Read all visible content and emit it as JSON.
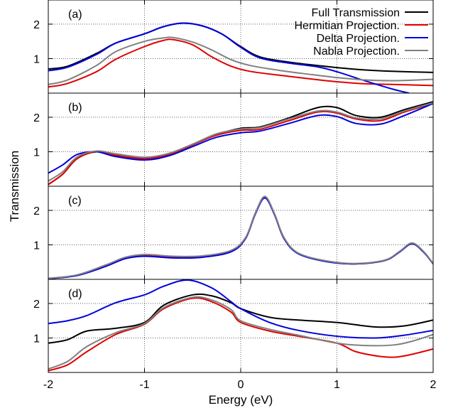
{
  "chart_data": {
    "type": "line",
    "xlabel": "Energy (eV)",
    "ylabel": "Transmission",
    "xlim": [
      -2,
      2
    ],
    "ylim": [
      0,
      2.7
    ],
    "x_ticks": [
      -2,
      -1,
      0,
      1,
      2
    ],
    "y_ticks": [
      1,
      2
    ],
    "grid": true,
    "legend_position": "top-right",
    "legend": [
      {
        "name": "Full Transmission",
        "color": "#000000"
      },
      {
        "name": "Hermitian Projection.",
        "color": "#e00000"
      },
      {
        "name": "Delta Projection.",
        "color": "#0000e0"
      },
      {
        "name": "Nabla Projection.",
        "color": "#808080"
      }
    ],
    "panels": [
      {
        "label": "(a)",
        "series": [
          {
            "name": "Full Transmission",
            "color": "#000000",
            "x": [
              -2,
              -1.8,
              -1.5,
              -1.3,
              -1.0,
              -0.8,
              -0.6,
              -0.4,
              -0.2,
              0,
              0.2,
              0.5,
              0.8,
              1.0,
              1.3,
              1.6,
              2.0
            ],
            "y": [
              0.7,
              0.78,
              1.15,
              1.45,
              1.72,
              1.93,
              2.03,
              1.95,
              1.72,
              1.35,
              1.05,
              0.9,
              0.8,
              0.74,
              0.67,
              0.63,
              0.6
            ]
          },
          {
            "name": "Hermitian Projection.",
            "color": "#e00000",
            "x": [
              -2,
              -1.8,
              -1.5,
              -1.3,
              -1.0,
              -0.8,
              -0.7,
              -0.5,
              -0.3,
              -0.1,
              0.1,
              0.4,
              0.7,
              1.0,
              1.3,
              1.6,
              2.0
            ],
            "y": [
              0.18,
              0.28,
              0.62,
              0.98,
              1.35,
              1.53,
              1.55,
              1.4,
              1.05,
              0.78,
              0.63,
              0.52,
              0.42,
              0.33,
              0.27,
              0.25,
              0.22
            ]
          },
          {
            "name": "Delta Projection.",
            "color": "#0000e0",
            "x": [
              -2,
              -1.8,
              -1.5,
              -1.3,
              -1.0,
              -0.8,
              -0.6,
              -0.4,
              -0.2,
              0,
              0.2,
              0.5,
              0.8,
              1.0,
              1.3,
              1.6,
              1.75
            ],
            "y": [
              0.65,
              0.75,
              1.12,
              1.45,
              1.72,
              1.93,
              2.03,
              1.95,
              1.72,
              1.33,
              1.02,
              0.87,
              0.76,
              0.62,
              0.35,
              0.1,
              0.0
            ]
          },
          {
            "name": "Nabla Projection.",
            "color": "#808080",
            "x": [
              -2,
              -1.8,
              -1.5,
              -1.3,
              -1.0,
              -0.8,
              -0.7,
              -0.5,
              -0.3,
              -0.1,
              0.1,
              0.4,
              0.7,
              1.0,
              1.3,
              1.6,
              2.0
            ],
            "y": [
              0.25,
              0.38,
              0.8,
              1.2,
              1.5,
              1.6,
              1.61,
              1.48,
              1.25,
              0.97,
              0.8,
              0.66,
              0.55,
              0.45,
              0.38,
              0.36,
              0.4
            ]
          }
        ]
      },
      {
        "label": "(b)",
        "series": [
          {
            "name": "Full Transmission",
            "color": "#000000",
            "x": [
              -2,
              -1.85,
              -1.7,
              -1.5,
              -1.3,
              -1.0,
              -0.75,
              -0.5,
              -0.25,
              0,
              0.2,
              0.5,
              0.8,
              1.0,
              1.2,
              1.45,
              1.7,
              2.0
            ],
            "y": [
              0.05,
              0.35,
              0.8,
              1.0,
              0.9,
              0.8,
              0.92,
              1.2,
              1.5,
              1.68,
              1.72,
              1.98,
              2.28,
              2.28,
              2.05,
              2.0,
              2.22,
              2.45
            ]
          },
          {
            "name": "Hermitian Projection.",
            "color": "#e00000",
            "x": [
              -2,
              -1.85,
              -1.7,
              -1.5,
              -1.3,
              -1.0,
              -0.75,
              -0.5,
              -0.25,
              0,
              0.2,
              0.5,
              0.8,
              1.0,
              1.2,
              1.45,
              1.7,
              2.0
            ],
            "y": [
              0.05,
              0.35,
              0.8,
              1.0,
              0.9,
              0.8,
              0.92,
              1.2,
              1.48,
              1.62,
              1.65,
              1.9,
              2.15,
              2.12,
              1.95,
              1.9,
              2.15,
              2.4
            ]
          },
          {
            "name": "Delta Projection.",
            "color": "#0000e0",
            "x": [
              -2,
              -1.85,
              -1.7,
              -1.5,
              -1.3,
              -1.0,
              -0.75,
              -0.5,
              -0.25,
              0,
              0.2,
              0.5,
              0.8,
              1.0,
              1.2,
              1.45,
              1.7,
              2.0
            ],
            "y": [
              0.38,
              0.62,
              0.92,
              1.0,
              0.86,
              0.76,
              0.88,
              1.15,
              1.42,
              1.55,
              1.6,
              1.82,
              2.05,
              2.02,
              1.82,
              1.8,
              2.05,
              2.4
            ]
          },
          {
            "name": "Nabla Projection.",
            "color": "#808080",
            "x": [
              -2,
              -1.85,
              -1.7,
              -1.5,
              -1.3,
              -1.0,
              -0.75,
              -0.5,
              -0.25,
              0,
              0.2,
              0.5,
              0.8,
              1.0,
              1.2,
              1.45,
              1.7,
              2.0
            ],
            "y": [
              0.15,
              0.42,
              0.85,
              1.02,
              0.94,
              0.84,
              0.95,
              1.22,
              1.52,
              1.66,
              1.7,
              1.95,
              2.18,
              2.15,
              1.98,
              1.95,
              2.18,
              2.42
            ]
          }
        ]
      },
      {
        "label": "(c)",
        "series": [
          {
            "name": "Full Transmission",
            "color": "#000000",
            "x": [
              -2,
              -1.7,
              -1.4,
              -1.2,
              -1.0,
              -0.7,
              -0.4,
              -0.1,
              0.05,
              0.15,
              0.25,
              0.35,
              0.45,
              0.6,
              0.9,
              1.2,
              1.5,
              1.65,
              1.78,
              1.9,
              2.0
            ],
            "y": [
              0.02,
              0.12,
              0.4,
              0.62,
              0.7,
              0.65,
              0.66,
              0.82,
              1.2,
              1.9,
              2.4,
              1.9,
              1.2,
              0.75,
              0.52,
              0.45,
              0.55,
              0.8,
              1.05,
              0.8,
              0.45
            ]
          },
          {
            "name": "Hermitian Projection.",
            "color": "#e00000",
            "x": [
              -2,
              -1.7,
              -1.4,
              -1.2,
              -1.0,
              -0.7,
              -0.4,
              -0.1,
              0.05,
              0.15,
              0.25,
              0.35,
              0.45,
              0.6,
              0.9,
              1.2,
              1.5,
              1.65,
              1.78,
              1.9,
              2.0
            ],
            "y": [
              0.02,
              0.12,
              0.4,
              0.62,
              0.7,
              0.65,
              0.66,
              0.82,
              1.2,
              1.9,
              2.38,
              1.9,
              1.2,
              0.75,
              0.52,
              0.45,
              0.55,
              0.8,
              1.04,
              0.8,
              0.45
            ]
          },
          {
            "name": "Delta Projection.",
            "color": "#0000e0",
            "x": [
              -2,
              -1.7,
              -1.4,
              -1.2,
              -1.0,
              -0.7,
              -0.4,
              -0.1,
              0.05,
              0.15,
              0.25,
              0.35,
              0.45,
              0.6,
              0.9,
              1.2,
              1.5,
              1.65,
              1.78,
              1.9,
              2.0
            ],
            "y": [
              0.02,
              0.11,
              0.38,
              0.6,
              0.67,
              0.62,
              0.64,
              0.8,
              1.18,
              1.88,
              2.36,
              1.88,
              1.18,
              0.74,
              0.51,
              0.45,
              0.55,
              0.79,
              1.03,
              0.79,
              0.45
            ]
          },
          {
            "name": "Nabla Projection.",
            "color": "#808080",
            "x": [
              -2,
              -1.7,
              -1.4,
              -1.2,
              -1.0,
              -0.7,
              -0.4,
              -0.1,
              0.05,
              0.15,
              0.25,
              0.35,
              0.45,
              0.6,
              0.9,
              1.2,
              1.5,
              1.65,
              1.78,
              1.9,
              2.0
            ],
            "y": [
              0.03,
              0.13,
              0.42,
              0.64,
              0.72,
              0.67,
              0.68,
              0.84,
              1.21,
              1.91,
              2.4,
              1.91,
              1.21,
              0.76,
              0.53,
              0.46,
              0.56,
              0.81,
              1.05,
              0.81,
              0.46
            ]
          }
        ]
      },
      {
        "label": "(d)",
        "series": [
          {
            "name": "Full Transmission",
            "color": "#000000",
            "x": [
              -2,
              -1.8,
              -1.6,
              -1.3,
              -1.0,
              -0.8,
              -0.5,
              -0.3,
              -0.1,
              0,
              0.3,
              0.6,
              1.0,
              1.4,
              1.7,
              2.0
            ],
            "y": [
              0.85,
              0.95,
              1.2,
              1.28,
              1.45,
              1.95,
              2.25,
              2.22,
              2.02,
              1.85,
              1.6,
              1.52,
              1.45,
              1.32,
              1.35,
              1.52
            ]
          },
          {
            "name": "Hermitian Projection.",
            "color": "#e00000",
            "x": [
              -2,
              -1.8,
              -1.6,
              -1.3,
              -1.0,
              -0.8,
              -0.5,
              -0.3,
              -0.1,
              0,
              0.3,
              0.6,
              1.0,
              1.2,
              1.5,
              1.7,
              2.0
            ],
            "y": [
              0.05,
              0.22,
              0.6,
              1.1,
              1.4,
              1.85,
              2.15,
              2.05,
              1.75,
              1.45,
              1.2,
              1.05,
              0.85,
              0.6,
              0.45,
              0.48,
              0.68
            ]
          },
          {
            "name": "Delta Projection.",
            "color": "#0000e0",
            "x": [
              -2,
              -1.8,
              -1.6,
              -1.3,
              -1.0,
              -0.8,
              -0.55,
              -0.3,
              -0.1,
              0,
              0.3,
              0.6,
              1.0,
              1.4,
              1.7,
              2.0
            ],
            "y": [
              1.42,
              1.5,
              1.65,
              2.02,
              2.25,
              2.5,
              2.68,
              2.45,
              2.05,
              1.85,
              1.45,
              1.22,
              1.05,
              1.0,
              1.08,
              1.22
            ]
          },
          {
            "name": "Nabla Projection.",
            "color": "#808080",
            "x": [
              -2,
              -1.8,
              -1.6,
              -1.3,
              -1.0,
              -0.8,
              -0.5,
              -0.3,
              -0.1,
              0,
              0.3,
              0.6,
              1.0,
              1.3,
              1.6,
              1.8,
              2.0
            ],
            "y": [
              0.1,
              0.32,
              0.75,
              1.15,
              1.42,
              1.88,
              2.18,
              2.1,
              1.82,
              1.5,
              1.25,
              1.08,
              0.85,
              0.78,
              0.8,
              0.92,
              1.1
            ]
          }
        ]
      }
    ]
  }
}
